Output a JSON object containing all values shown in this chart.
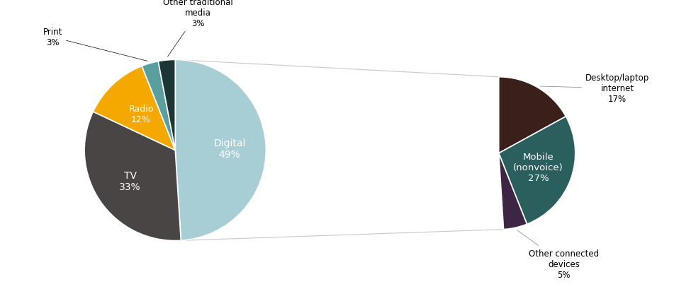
{
  "pie1": {
    "labels": [
      "Digital",
      "TV",
      "Radio",
      "Print",
      "Other traditional\nmedia"
    ],
    "values": [
      49,
      33,
      12,
      3,
      3
    ],
    "colors": [
      "#a8ced5",
      "#4a4545",
      "#f5a800",
      "#5b9ea0",
      "#1c3535"
    ],
    "text_inside": [
      {
        "label": "Digital\n49%",
        "color": "white",
        "fontsize": 10,
        "r": 0.6
      },
      {
        "label": "TV\n33%",
        "color": "white",
        "fontsize": 10,
        "r": 0.6
      },
      {
        "label": "Radio\n12%",
        "color": "white",
        "fontsize": 9,
        "r": 0.58
      }
    ],
    "text_outside_print": {
      "label": "Print\n3%",
      "color": "black",
      "fontsize": 8.5
    },
    "text_outside_other": {
      "label": "Other traditional\nmedia\n3%",
      "color": "black",
      "fontsize": 8.5
    }
  },
  "pie2": {
    "labels": [
      "Desktop/laptop\ninternet\n17%",
      "Mobile\n(nonvoice)\n27%",
      "Other connected\ndevices\n5%"
    ],
    "values": [
      17,
      27,
      5,
      51
    ],
    "colors": [
      "#3b1f1a",
      "#2b5f5e",
      "#3d2645",
      "#ffffff"
    ],
    "label_colors": [
      "black",
      "white",
      "black"
    ],
    "fontsize": [
      8.5,
      9.5,
      8.5
    ]
  },
  "connection_color": "#c8c8c8",
  "bg_color": "#ffffff",
  "pie1_startangle": 90,
  "pie2_startangle": 90
}
